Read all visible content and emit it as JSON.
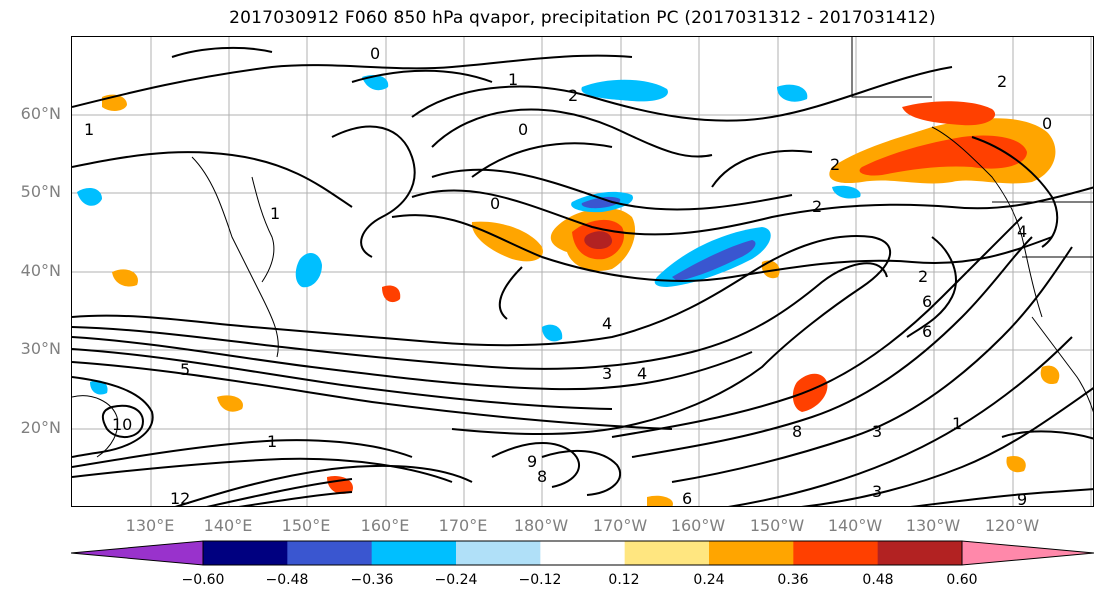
{
  "title": "2017030912 F060 850 hPa qvapor, precipitation PC (2017031312 - 2017031412)",
  "lat_labels": [
    "60°N",
    "50°N",
    "40°N",
    "30°N",
    "20°N"
  ],
  "lon_labels": [
    "130°E",
    "140°E",
    "150°E",
    "160°E",
    "170°E",
    "180°W",
    "170°W",
    "160°W",
    "150°W",
    "140°W",
    "130°W",
    "120°W"
  ],
  "colorbar": {
    "ticks": [
      "−0.60",
      "−0.48",
      "−0.36",
      "−0.24",
      "−0.12",
      "0.12",
      "0.24",
      "0.36",
      "0.48",
      "0.60"
    ],
    "colors": [
      "#9932cc",
      "#000080",
      "#3a56d0",
      "#00bfff",
      "#b0e0f8",
      "#ffffff",
      "#ffe680",
      "#ffa500",
      "#ff4000",
      "#b22222",
      "#ff88aa"
    ]
  },
  "contour_labels": [
    "0",
    "1",
    "2",
    "0",
    "1",
    "2",
    "1",
    "0",
    "2",
    "4",
    "6",
    "3",
    "4",
    "5",
    "10",
    "9",
    "8",
    "12",
    "6",
    "1",
    "3",
    "9",
    "2",
    "0",
    "4",
    "6",
    "2",
    "1",
    "3",
    "8"
  ],
  "fill_colors": {
    "pos_light": "#ffe680",
    "pos_mid": "#ffa500",
    "pos_strong": "#ff4000",
    "pos_max": "#b22222",
    "neg_light": "#b0e0f8",
    "neg_mid": "#00bfff",
    "neg_strong": "#3a56d0"
  }
}
